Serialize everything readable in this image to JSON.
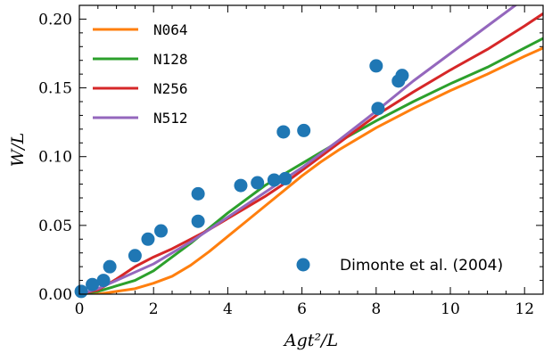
{
  "chart_data": {
    "type": "line",
    "xlabel": "Agt²/L",
    "ylabel": "W/L",
    "xlim": [
      0,
      12.5
    ],
    "ylim": [
      0,
      0.21
    ],
    "xticks": [
      0,
      2,
      4,
      6,
      8,
      10,
      12
    ],
    "xtick_labels": [
      "0",
      "2",
      "4",
      "6",
      "8",
      "10",
      "12"
    ],
    "yticks": [
      0.0,
      0.05,
      0.1,
      0.15,
      0.2
    ],
    "ytick_labels": [
      "0.00",
      "0.05",
      "0.10",
      "0.15",
      "0.20"
    ],
    "legend_position": "top-left",
    "series": [
      {
        "name": "N064",
        "color": "#ff7f0e",
        "x": [
          0,
          0.5,
          1.0,
          1.5,
          2.0,
          2.5,
          3.0,
          3.5,
          4.0,
          4.5,
          5.0,
          5.5,
          6.0,
          6.5,
          7.0,
          8.0,
          9.0,
          10.0,
          11.0,
          12.0,
          12.5
        ],
        "y": [
          0.0,
          0.0,
          0.002,
          0.004,
          0.008,
          0.013,
          0.021,
          0.031,
          0.042,
          0.053,
          0.064,
          0.075,
          0.086,
          0.096,
          0.105,
          0.121,
          0.135,
          0.148,
          0.16,
          0.173,
          0.179
        ]
      },
      {
        "name": "N128",
        "color": "#2ca02c",
        "x": [
          0,
          0.5,
          1.0,
          1.5,
          2.0,
          2.5,
          3.0,
          3.5,
          4.0,
          4.5,
          5.0,
          5.5,
          6.0,
          6.5,
          7.0,
          8.0,
          9.0,
          10.0,
          11.0,
          12.0,
          12.5
        ],
        "y": [
          0.0,
          0.002,
          0.006,
          0.01,
          0.017,
          0.027,
          0.037,
          0.048,
          0.059,
          0.069,
          0.079,
          0.087,
          0.095,
          0.103,
          0.111,
          0.126,
          0.14,
          0.153,
          0.165,
          0.179,
          0.186
        ]
      },
      {
        "name": "N256",
        "color": "#d62728",
        "x": [
          0,
          0.5,
          1.0,
          1.5,
          2.0,
          2.5,
          3.0,
          3.5,
          4.0,
          4.5,
          5.0,
          5.5,
          6.0,
          7.0,
          8.0,
          9.0,
          10.0,
          11.0,
          12.0,
          12.5
        ],
        "y": [
          0.0,
          0.003,
          0.011,
          0.02,
          0.027,
          0.033,
          0.04,
          0.047,
          0.055,
          0.063,
          0.071,
          0.08,
          0.09,
          0.11,
          0.13,
          0.147,
          0.163,
          0.178,
          0.195,
          0.204
        ]
      },
      {
        "name": "N512",
        "color": "#9467bd",
        "x": [
          0,
          0.5,
          1.0,
          1.5,
          2.0,
          2.5,
          3.0,
          3.5,
          4.0,
          4.5,
          5.0,
          5.5,
          6.0,
          7.0,
          8.0,
          9.0,
          10.0,
          11.0,
          12.0,
          12.5
        ],
        "y": [
          0.0,
          0.004,
          0.01,
          0.016,
          0.022,
          0.03,
          0.038,
          0.047,
          0.056,
          0.065,
          0.074,
          0.083,
          0.092,
          0.112,
          0.133,
          0.155,
          0.175,
          0.195,
          0.215,
          0.225
        ]
      }
    ],
    "scatter_series": {
      "name": "Dimonte et al. (2004)",
      "color": "#1f77b4",
      "x": [
        0.05,
        0.35,
        0.65,
        0.82,
        1.5,
        1.85,
        2.2,
        3.2,
        3.2,
        4.35,
        4.8,
        5.25,
        5.5,
        5.55,
        6.05,
        8.0,
        8.05,
        8.6,
        8.7
      ],
      "y": [
        0.002,
        0.007,
        0.01,
        0.02,
        0.028,
        0.04,
        0.046,
        0.053,
        0.073,
        0.079,
        0.081,
        0.083,
        0.118,
        0.084,
        0.119,
        0.166,
        0.135,
        0.155,
        0.159
      ]
    }
  }
}
